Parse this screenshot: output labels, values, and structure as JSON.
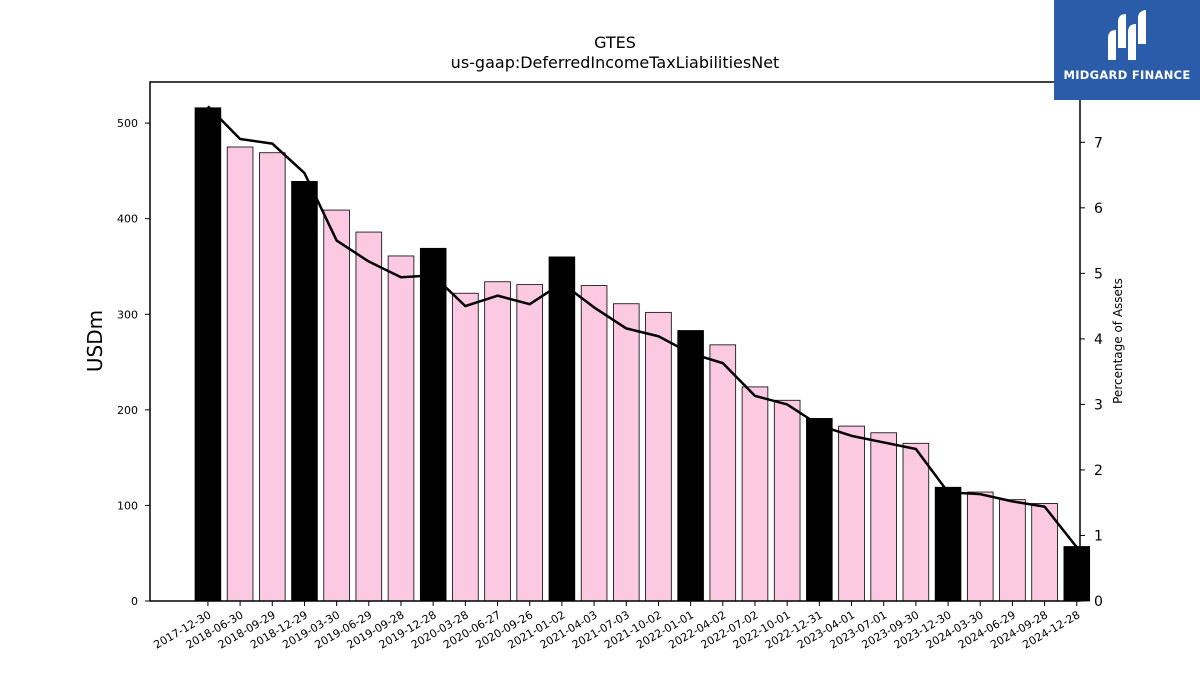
{
  "chart_data": {
    "type": "bar",
    "title": "GTES",
    "subtitle": "us-gaap:DeferredIncomeTaxLiabilitiesNet",
    "ylabel": "USDm",
    "y2label": "Percentage of Assets",
    "ylim": [
      0,
      543
    ],
    "y2lim": [
      0,
      7.92
    ],
    "yticks": [
      0,
      100,
      200,
      300,
      400,
      500
    ],
    "y2ticks": [
      0,
      1,
      2,
      3,
      4,
      5,
      6,
      7
    ],
    "categories": [
      "2017-12-30",
      "2018-06-30",
      "2018-09-29",
      "2018-12-29",
      "2019-03-30",
      "2019-06-29",
      "2019-09-28",
      "2019-12-28",
      "2020-03-28",
      "2020-06-27",
      "2020-09-26",
      "2021-01-02",
      "2021-04-03",
      "2021-07-03",
      "2021-10-02",
      "2022-01-01",
      "2022-04-02",
      "2022-07-02",
      "2022-10-01",
      "2022-12-31",
      "2023-04-01",
      "2023-07-01",
      "2023-09-30",
      "2023-12-30",
      "2024-03-30",
      "2024-06-29",
      "2024-09-28",
      "2024-12-28"
    ],
    "series": [
      {
        "values": [
          516,
          475,
          469,
          439,
          409,
          386,
          361,
          369,
          322,
          334,
          331,
          360,
          330,
          311,
          302,
          283,
          268,
          224,
          210,
          191,
          183,
          176,
          165,
          119,
          114,
          106,
          102,
          57
        ],
        "highlight": [
          true,
          false,
          false,
          true,
          false,
          false,
          false,
          true,
          false,
          false,
          false,
          true,
          false,
          false,
          false,
          true,
          false,
          false,
          false,
          true,
          false,
          false,
          false,
          true,
          false,
          false,
          false,
          true
        ]
      },
      {
        "axis": "right",
        "type": "line",
        "values": [
          7.55,
          7.05,
          6.98,
          6.53,
          5.5,
          5.18,
          4.94,
          4.97,
          4.5,
          4.66,
          4.53,
          4.85,
          4.48,
          4.16,
          4.04,
          3.78,
          3.63,
          3.13,
          3.0,
          2.68,
          2.52,
          2.42,
          2.32,
          1.66,
          1.63,
          1.52,
          1.44,
          0.82
        ]
      }
    ],
    "colors": {
      "highlight_bar": "#000000",
      "bar": "#fcc9e2",
      "bar_edge": "#000000",
      "line": "#000000"
    }
  },
  "brand": {
    "name": "MIDGARD FINANCE",
    "color": "#2a5caa"
  }
}
